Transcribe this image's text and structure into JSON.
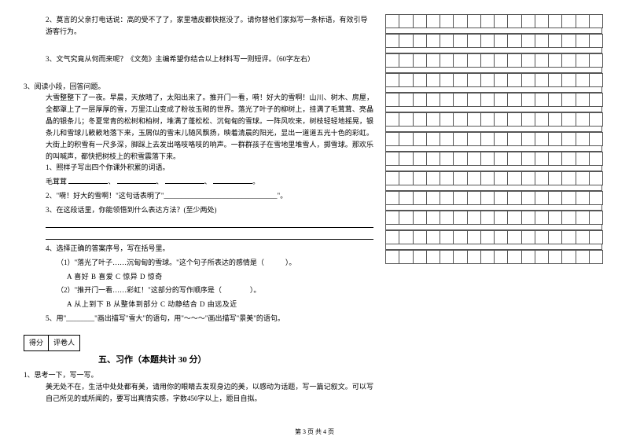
{
  "q2": {
    "text": "2、莫言的父亲打电话说：高的受不了了，家里墙皮都快抠没了。请你替他们家拟写一条标语，有效引导游客行为。"
  },
  "q3a": {
    "text": "3、文气究竟从何而来呢？《文苑》主编希望你结合以上材料写一则短评。（60字左右）"
  },
  "q3": {
    "num": "3、阅读小段，回答问题。",
    "para": "大雪整整下了一夜。早晨，天放晴了，太阳出来了。推开门一看，嗬！好大的雪啊！山川、树木、房屋，全都罩上了一层厚厚的雪，万里江山变成了粉妆玉砌的世界。落光了叶子的柳树上，挂满了毛茸茸、亮晶晶的银条儿；冬夏常青的松树和柏树，堆满了蓬松松、沉甸甸的雪球。一阵风吹来，树枝轻轻地摇晃，银条儿和雪球儿簌簌地落下来，玉屑似的雪末儿随风飘扬，映着清晨的阳光，显出一道道五光十色的彩虹。大街上的积雪有一尺多深，脚踩上去发出咯吱咯吱的响声。一群群孩子在雪地里堆雪人，掷雪球。那欢乐的叫喊声，都快把树枝上的积雪震落下来。",
    "sub1": "1、照样子写出四个你课外积累的词语。",
    "sub1_example": "毛茸茸",
    "sub2": "2、\"嗬！好大的雪啊！\"这句话表明了\"________________________________\"。",
    "sub3": "3、在这段话里，你能领悟到什么表达方法？(至少两处)",
    "sub4": "4、选择正确的答案序号，写在括号里。",
    "sub4_1": "（1）\"落光了叶子……沉甸甸的雪球。\"这个句子所表达的感情是（　　　）。",
    "sub4_1_opts": "A  喜好        B  喜爱        C  惊异        D  惊奇",
    "sub4_2": "（2）\"推开门一看……彩虹！\"这部分的写作顺序是（　　　　）。",
    "sub4_2_opts": "A  从上到下    B  从整体到部分    C  动静结合    D  由远及近",
    "sub5": "5、用\"________\"画出描写\"雪大\"的语句，用\"～～～\"画出描写\"景美\"的语句。"
  },
  "scorebox": {
    "c1": "得分",
    "c2": "评卷人"
  },
  "section5": "五、习作（本题共计 30 分）",
  "essay": {
    "num": "1、思考一下，写一写。",
    "prompt": "美无处不在，生活中处处都有美，请用你的眼睛去发现身边的美，以感动为话题，写一篇记叙文。可以写自己所见的或所闻的，要写出真情实感，字数450字以上，题目自拟。"
  },
  "footer": "第 3 页  共 4 页",
  "grid": {
    "cols": 16,
    "bigRows": 13
  },
  "colors": {
    "text": "#000000",
    "line": "#555555",
    "bg": "#ffffff"
  }
}
